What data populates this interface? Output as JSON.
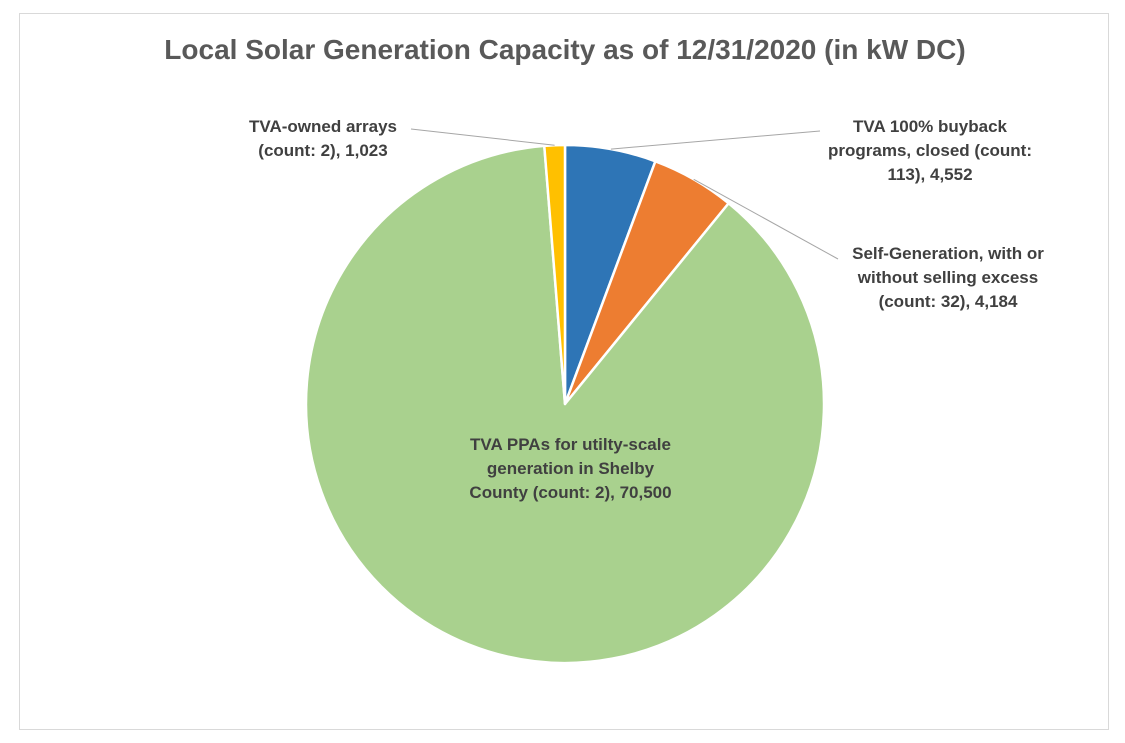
{
  "chart_data": {
    "type": "pie",
    "title": "Local Solar Generation Capacity as of 12/31/2020 (in kW DC)",
    "unit": "kW DC",
    "slices": [
      {
        "name": "TVA 100% buyback programs, closed",
        "count": 113,
        "value": 4552,
        "color": "#2e75b6",
        "label": "TVA 100% buyback programs, closed (count: 113), 4,552"
      },
      {
        "name": "Self-Generation, with or without selling excess",
        "count": 32,
        "value": 4184,
        "color": "#ed7d31",
        "label": "Self-Generation, with or without selling excess (count: 32), 4,184"
      },
      {
        "name": "TVA PPAs for utilty-scale generation in Shelby County",
        "count": 2,
        "value": 70500,
        "color": "#a9d18e",
        "label": "TVA PPAs for utilty-scale generation in Shelby County (count: 2), 70,500"
      },
      {
        "name": "TVA-owned arrays",
        "count": 2,
        "value": 1023,
        "color": "#ffc000",
        "label": "TVA-owned arrays (count: 2), 1,023"
      }
    ],
    "start_angle": "12 o'clock, clockwise",
    "legend": "none",
    "data_labels": "outside with leader lines; largest slice labeled inside"
  }
}
